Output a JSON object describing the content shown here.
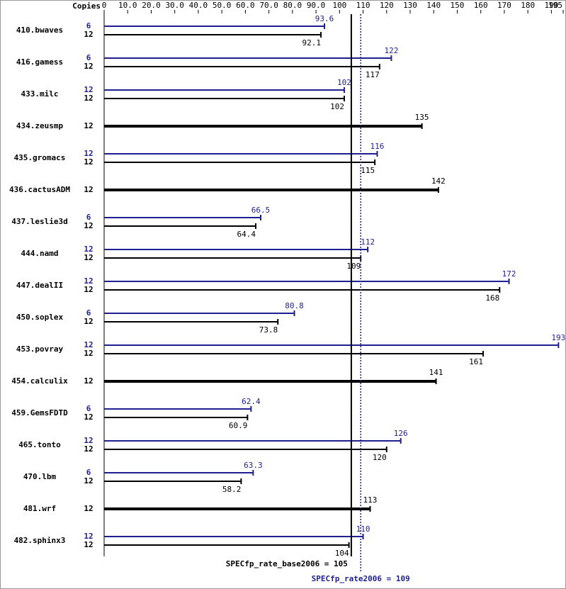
{
  "chart_data": {
    "type": "bar",
    "copies_label": "Copies",
    "categories": [
      "410.bwaves",
      "416.gamess",
      "433.milc",
      "434.zeusmp",
      "435.gromacs",
      "436.cactusADM",
      "437.leslie3d",
      "444.namd",
      "447.dealII",
      "450.soplex",
      "453.povray",
      "454.calculix",
      "459.GemsFDTD",
      "465.tonto",
      "470.lbm",
      "481.wrf",
      "482.sphinx3"
    ],
    "series": [
      {
        "color": "#1f1f8f",
        "copies": [
          6,
          6,
          12,
          null,
          12,
          null,
          6,
          12,
          12,
          6,
          12,
          null,
          6,
          12,
          6,
          null,
          12
        ],
        "values": [
          93.6,
          122,
          102,
          null,
          116,
          null,
          66.5,
          112,
          172,
          80.8,
          193,
          null,
          62.4,
          126,
          63.3,
          null,
          110
        ]
      },
      {
        "color": "#000000",
        "copies": [
          12,
          12,
          12,
          12,
          12,
          12,
          12,
          12,
          12,
          12,
          12,
          12,
          12,
          12,
          12,
          12,
          12
        ],
        "values": [
          92.1,
          117,
          102,
          135,
          115,
          142,
          64.4,
          109,
          168,
          73.8,
          161,
          141,
          60.9,
          120,
          58.2,
          113,
          104
        ]
      }
    ],
    "xlim": [
      0,
      195
    ],
    "xticks": [
      0,
      {
        "value": 10,
        "label": "10.0"
      },
      {
        "value": 20,
        "label": "20.0"
      },
      {
        "value": 30,
        "label": "30.0"
      },
      {
        "value": 40,
        "label": "40.0"
      },
      {
        "value": 50,
        "label": "50.0"
      },
      {
        "value": 60,
        "label": "60.0"
      },
      {
        "value": 70,
        "label": "70.0"
      },
      {
        "value": 80,
        "label": "80.0"
      },
      {
        "value": 90,
        "label": "90.0"
      },
      100,
      110,
      120,
      130,
      140,
      150,
      160,
      170,
      180,
      190,
      195
    ],
    "reference_lines": [
      {
        "label": "SPECfp_rate_base2006 = 105",
        "value": 105,
        "color": "#000000",
        "style": "solid"
      },
      {
        "label": "SPECfp_rate2006 = 109",
        "value": 109,
        "color": "#1f1f8f",
        "style": "dotted"
      }
    ]
  }
}
